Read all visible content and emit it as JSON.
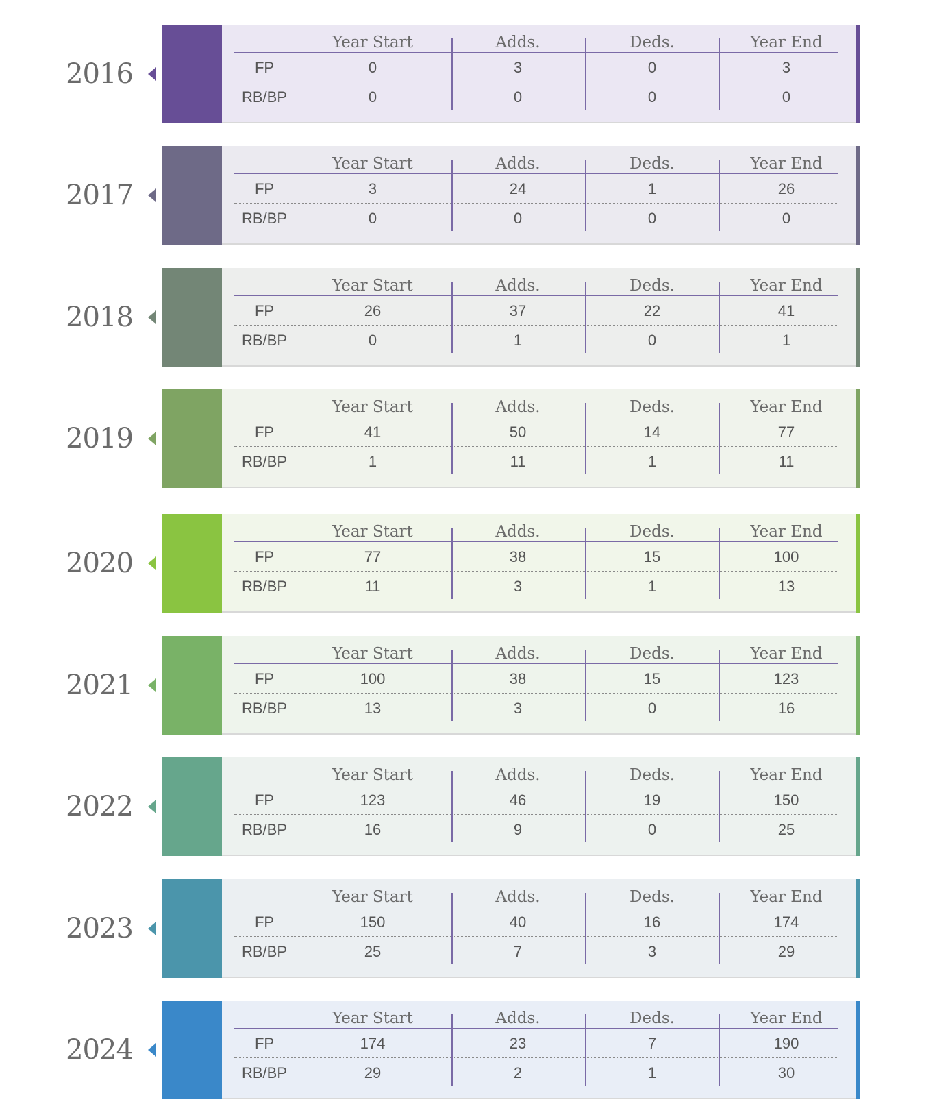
{
  "headers": {
    "year_start": "Year Start",
    "adds": "Adds.",
    "deds": "Deds.",
    "year_end": "Year End"
  },
  "row_labels": {
    "fp": "FP",
    "rbbp": "RB/BP"
  },
  "years": [
    {
      "year": "2016",
      "color": "#674e96",
      "bg": "#ebe7f3",
      "fp": {
        "start": "0",
        "adds": "3",
        "deds": "0",
        "end": "3"
      },
      "rbbp": {
        "start": "0",
        "adds": "0",
        "deds": "0",
        "end": "0"
      }
    },
    {
      "year": "2017",
      "color": "#6e6a87",
      "bg": "#ebeaf0",
      "fp": {
        "start": "3",
        "adds": "24",
        "deds": "1",
        "end": "26"
      },
      "rbbp": {
        "start": "0",
        "adds": "0",
        "deds": "0",
        "end": "0"
      }
    },
    {
      "year": "2018",
      "color": "#738676",
      "bg": "#edeeed",
      "fp": {
        "start": "26",
        "adds": "37",
        "deds": "22",
        "end": "41"
      },
      "rbbp": {
        "start": "0",
        "adds": "1",
        "deds": "0",
        "end": "1"
      }
    },
    {
      "year": "2019",
      "color": "#7fa463",
      "bg": "#f0f3ec",
      "fp": {
        "start": "41",
        "adds": "50",
        "deds": "14",
        "end": "77"
      },
      "rbbp": {
        "start": "1",
        "adds": "11",
        "deds": "1",
        "end": "11"
      }
    },
    {
      "year": "2020",
      "color": "#8ac441",
      "bg": "#f1f6ea",
      "fp": {
        "start": "77",
        "adds": "38",
        "deds": "15",
        "end": "100"
      },
      "rbbp": {
        "start": "11",
        "adds": "3",
        "deds": "1",
        "end": "13"
      }
    },
    {
      "year": "2021",
      "color": "#79b267",
      "bg": "#eef4ec",
      "fp": {
        "start": "100",
        "adds": "38",
        "deds": "15",
        "end": "123"
      },
      "rbbp": {
        "start": "13",
        "adds": "3",
        "deds": "0",
        "end": "16"
      }
    },
    {
      "year": "2022",
      "color": "#66a68c",
      "bg": "#edf2ef",
      "fp": {
        "start": "123",
        "adds": "46",
        "deds": "19",
        "end": "150"
      },
      "rbbp": {
        "start": "16",
        "adds": "9",
        "deds": "0",
        "end": "25"
      }
    },
    {
      "year": "2023",
      "color": "#4b95ab",
      "bg": "#ebeff2",
      "fp": {
        "start": "150",
        "adds": "40",
        "deds": "16",
        "end": "174"
      },
      "rbbp": {
        "start": "25",
        "adds": "7",
        "deds": "3",
        "end": "29"
      }
    },
    {
      "year": "2024",
      "color": "#3a88c9",
      "bg": "#e9eef7",
      "fp": {
        "start": "174",
        "adds": "23",
        "deds": "7",
        "end": "190"
      },
      "rbbp": {
        "start": "29",
        "adds": "2",
        "deds": "1",
        "end": "30"
      }
    }
  ]
}
